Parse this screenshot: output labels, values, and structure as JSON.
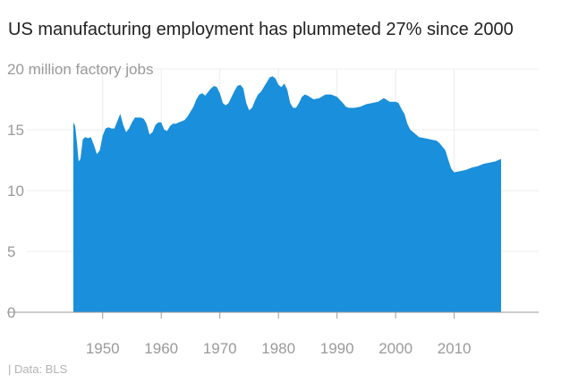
{
  "chart_data": {
    "type": "area",
    "title": "US manufacturing employment has plummeted 27% since 2000",
    "unit_label": "million factory jobs",
    "xlabel": "",
    "ylabel": "",
    "xlim": [
      1939,
      2027
    ],
    "ylim": [
      0,
      20
    ],
    "y_ticks": [
      0,
      5,
      10,
      15,
      20
    ],
    "x_ticks": [
      1950,
      1960,
      1970,
      1980,
      1990,
      2000,
      2010
    ],
    "grid": true,
    "color": "#1a8fdb",
    "source": "| Data: BLS",
    "series": [
      {
        "x": [
          1945.0,
          1945.3,
          1945.6,
          1945.9,
          1946.2,
          1946.6,
          1947,
          1947.5,
          1948,
          1948.6,
          1949.0,
          1949.5,
          1950,
          1950.5,
          1951,
          1951.5,
          1952,
          1952.5,
          1953,
          1953.5,
          1954,
          1954.5,
          1955,
          1955.5,
          1956,
          1956.5,
          1957,
          1957.5,
          1958,
          1958.5,
          1959,
          1959.5,
          1960,
          1960.5,
          1961,
          1961.5,
          1962,
          1962.5,
          1963,
          1963.5,
          1964,
          1964.5,
          1965,
          1965.5,
          1966,
          1966.5,
          1967,
          1967.5,
          1968,
          1968.5,
          1969,
          1969.5,
          1970,
          1970.5,
          1971,
          1971.5,
          1972,
          1972.5,
          1973,
          1973.5,
          1974,
          1974.5,
          1975,
          1975.5,
          1976,
          1976.5,
          1977,
          1977.5,
          1978,
          1978.5,
          1979,
          1979.5,
          1980,
          1980.5,
          1981,
          1981.5,
          1982,
          1982.5,
          1983,
          1983.5,
          1984,
          1984.5,
          1985,
          1986,
          1987,
          1988,
          1989,
          1990,
          1991,
          1991.5,
          1992,
          1993,
          1994,
          1995,
          1996,
          1997,
          1998,
          1999,
          2000,
          2000.5,
          2001,
          2001.5,
          2002,
          2002.5,
          2003,
          2004,
          2005,
          2006,
          2007,
          2007.5,
          2008,
          2008.5,
          2009,
          2009.5,
          2010,
          2011,
          2012,
          2013,
          2014,
          2015,
          2016,
          2017,
          2017.5,
          2018
        ],
        "y": [
          15.6,
          15.3,
          14.0,
          12.4,
          12.6,
          14.2,
          14.4,
          14.3,
          14.4,
          13.6,
          13.0,
          13.3,
          14.5,
          15.1,
          15.2,
          15.1,
          15.1,
          15.7,
          16.3,
          15.4,
          14.8,
          15.1,
          15.6,
          16.0,
          16.0,
          16.0,
          15.9,
          15.5,
          14.6,
          14.8,
          15.4,
          15.6,
          15.6,
          15.0,
          14.9,
          15.3,
          15.5,
          15.5,
          15.6,
          15.7,
          15.8,
          16.1,
          16.5,
          16.9,
          17.5,
          17.9,
          18.0,
          17.8,
          18.1,
          18.4,
          18.6,
          18.5,
          18.0,
          17.2,
          17.0,
          17.2,
          17.7,
          18.2,
          18.6,
          18.7,
          18.4,
          17.2,
          16.6,
          16.8,
          17.4,
          17.9,
          18.1,
          18.5,
          18.9,
          19.3,
          19.4,
          19.2,
          18.7,
          18.5,
          18.8,
          18.3,
          17.2,
          16.8,
          16.8,
          17.2,
          17.7,
          17.9,
          17.8,
          17.5,
          17.6,
          17.9,
          17.9,
          17.7,
          17.2,
          16.9,
          16.8,
          16.8,
          16.9,
          17.1,
          17.2,
          17.3,
          17.6,
          17.3,
          17.3,
          17.2,
          16.7,
          16.3,
          15.5,
          15.0,
          14.8,
          14.4,
          14.3,
          14.2,
          14.1,
          13.9,
          13.6,
          13.3,
          12.5,
          11.8,
          11.5,
          11.6,
          11.7,
          11.9,
          12.0,
          12.2,
          12.3,
          12.4,
          12.5,
          12.6
        ]
      }
    ]
  }
}
